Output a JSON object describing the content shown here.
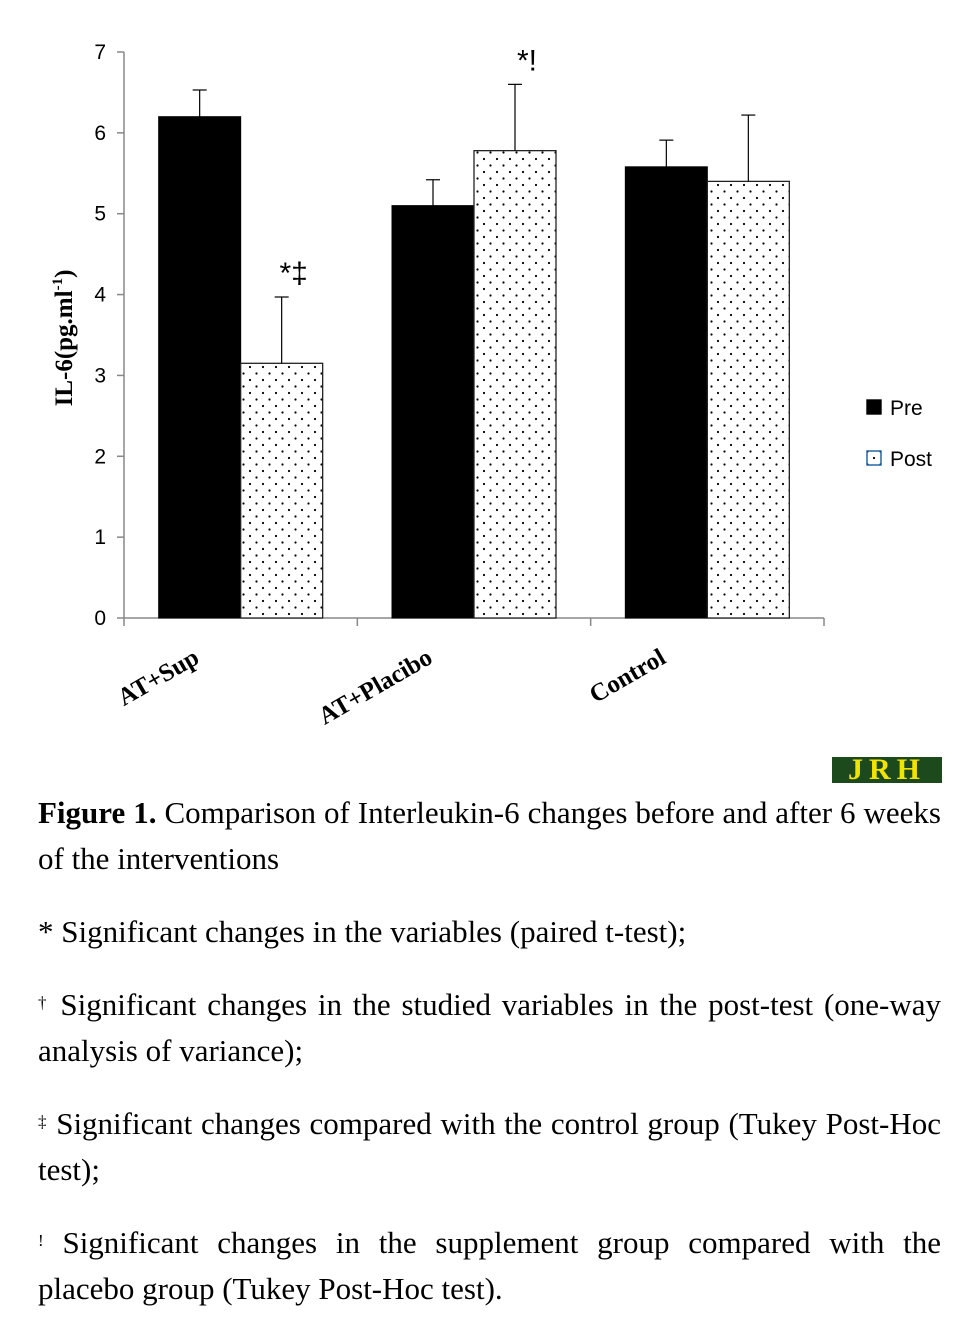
{
  "chart_data": {
    "type": "bar",
    "categories": [
      "AT+Sup",
      "AT+Placibo",
      "Control"
    ],
    "series": [
      {
        "name": "Pre",
        "values": [
          6.2,
          5.1,
          5.58
        ],
        "errors": [
          0.33,
          0.32,
          0.33
        ],
        "fill": "solid-black"
      },
      {
        "name": "Post",
        "values": [
          3.15,
          5.78,
          5.4
        ],
        "errors": [
          0.82,
          0.82,
          0.82
        ],
        "fill": "dotted"
      }
    ],
    "annotations": [
      {
        "category": "AT+Sup",
        "series": "Post",
        "text": "*‡"
      },
      {
        "category": "AT+Placibo",
        "series": "Post",
        "text": "*!"
      }
    ],
    "ylabel": "IL-6(pg.ml",
    "ylabel_superscript": "-1",
    "ylabel_suffix": ")",
    "xlabel": "",
    "ylim": [
      0,
      7
    ],
    "yticks": [
      "0",
      "1",
      "2",
      "3",
      "4",
      "5",
      "6",
      "7"
    ],
    "grid": false,
    "legend_placement": "right"
  },
  "logo": {
    "text": "JRH"
  },
  "caption": {
    "figure_label": "Figure 1.",
    "figure_text": " Comparison of Interleukin-6 changes before and after 6 weeks of the interventions",
    "notes": [
      {
        "symbol": "*",
        "text": " Significant changes in the variables (paired t-test);"
      },
      {
        "symbol": "†",
        "text": " Significant changes in the studied variables in the post-test (one-way analysis of variance);"
      },
      {
        "symbol": "‡",
        "text": " Significant changes compared with the control group (Tukey Post-Hoc test);"
      },
      {
        "symbol": "!",
        "text": " Significant changes in the supplement group compared with the placebo group (Tukey Post-Hoc test)."
      }
    ]
  }
}
